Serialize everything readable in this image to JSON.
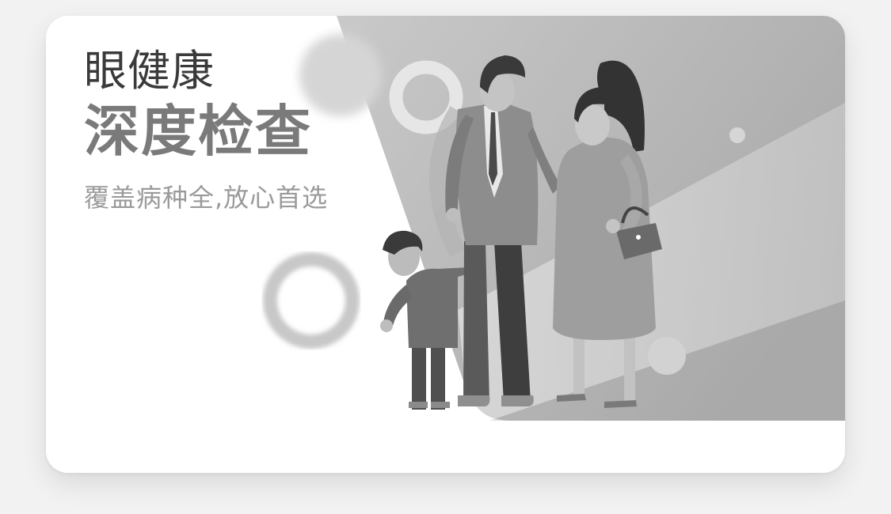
{
  "banner": {
    "title_line1": "眼健康",
    "title_line2": "深度检查",
    "subtitle": "覆盖病种全,放心首选",
    "illustration": "family-illustration",
    "colors": {
      "background": "#f2f2f2",
      "card": "#ffffff",
      "title_primary": "#3a3a3a",
      "title_emphasis": "#7a7a7a",
      "subtitle": "#9a9a9a"
    }
  }
}
